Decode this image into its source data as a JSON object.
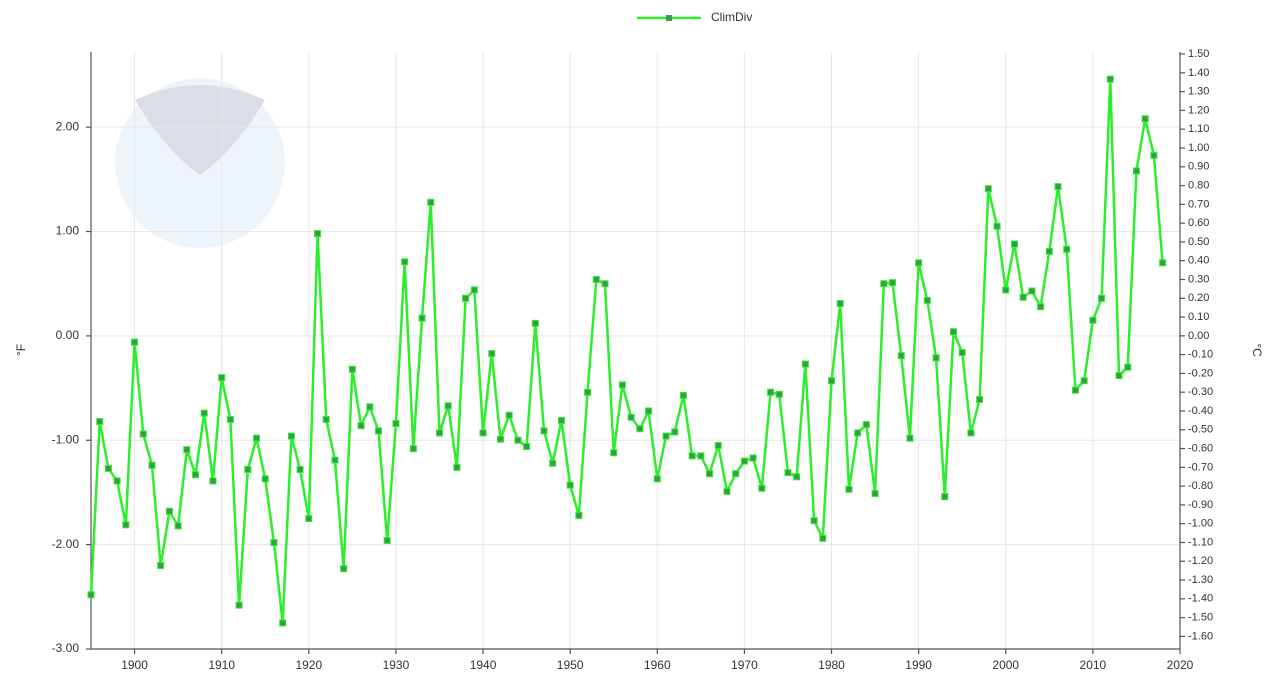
{
  "chart_data": {
    "type": "line",
    "y_label": "°F",
    "y2_label": "°C",
    "x": [
      1895,
      1896,
      1897,
      1898,
      1899,
      1900,
      1901,
      1902,
      1903,
      1904,
      1905,
      1906,
      1907,
      1908,
      1909,
      1910,
      1911,
      1912,
      1913,
      1914,
      1915,
      1916,
      1917,
      1918,
      1919,
      1920,
      1921,
      1922,
      1923,
      1924,
      1925,
      1926,
      1927,
      1928,
      1929,
      1930,
      1931,
      1932,
      1933,
      1934,
      1935,
      1936,
      1937,
      1938,
      1939,
      1940,
      1941,
      1942,
      1943,
      1944,
      1945,
      1946,
      1947,
      1948,
      1949,
      1950,
      1951,
      1952,
      1953,
      1954,
      1955,
      1956,
      1957,
      1958,
      1959,
      1960,
      1961,
      1962,
      1963,
      1964,
      1965,
      1966,
      1967,
      1968,
      1969,
      1970,
      1971,
      1972,
      1973,
      1974,
      1975,
      1976,
      1977,
      1978,
      1979,
      1980,
      1981,
      1982,
      1983,
      1984,
      1985,
      1986,
      1987,
      1988,
      1989,
      1990,
      1991,
      1992,
      1993,
      1994,
      1995,
      1996,
      1997,
      1998,
      1999,
      2000,
      2001,
      2002,
      2003,
      2004,
      2005,
      2006,
      2007,
      2008,
      2009,
      2010,
      2011,
      2012,
      2013,
      2014,
      2015,
      2016,
      2017,
      2018
    ],
    "series": [
      {
        "name": "ClimDiv",
        "color": "#2bef2b",
        "marker_color": "#3a9a4a",
        "values": [
          -2.48,
          -0.82,
          -1.27,
          -1.39,
          -1.81,
          -0.06,
          -0.94,
          -1.24,
          -2.2,
          -1.68,
          -1.82,
          -1.09,
          -1.33,
          -0.74,
          -1.39,
          -0.4,
          -0.8,
          -2.58,
          -1.28,
          -0.98,
          -1.37,
          -1.98,
          -2.75,
          -0.96,
          -1.28,
          -1.75,
          0.98,
          -0.8,
          -1.19,
          -2.23,
          -0.32,
          -0.86,
          -0.68,
          -0.91,
          -1.96,
          -0.84,
          0.71,
          -1.08,
          0.17,
          1.28,
          -0.93,
          -0.67,
          -1.26,
          0.36,
          0.44,
          -0.93,
          -0.17,
          -0.99,
          -0.76,
          -1.0,
          -1.06,
          0.12,
          -0.91,
          -1.22,
          -0.81,
          -1.43,
          -1.72,
          -0.54,
          0.54,
          0.5,
          -1.12,
          -0.47,
          -0.78,
          -0.89,
          -0.72,
          -1.37,
          -0.96,
          -0.92,
          -0.57,
          -1.15,
          -1.15,
          -1.32,
          -1.05,
          -1.49,
          -1.32,
          -1.2,
          -1.17,
          -1.46,
          -0.54,
          -0.56,
          -1.31,
          -1.35,
          -0.27,
          -1.77,
          -1.94,
          -0.43,
          0.31,
          -1.47,
          -0.93,
          -0.85,
          -1.51,
          0.5,
          0.51,
          -0.19,
          -0.98,
          0.7,
          0.34,
          -0.21,
          -1.54,
          0.04,
          -0.16,
          -0.93,
          -0.61,
          1.41,
          1.05,
          0.44,
          0.88,
          0.37,
          0.43,
          0.28,
          0.81,
          1.43,
          0.83,
          -0.52,
          -0.43,
          0.15,
          0.36,
          2.46,
          -0.38,
          -0.3,
          1.58,
          2.08,
          1.73,
          0.7
        ]
      }
    ],
    "xlim": [
      1895,
      2020
    ],
    "xticks": [
      1900,
      1910,
      1920,
      1930,
      1940,
      1950,
      1960,
      1970,
      1980,
      1990,
      2000,
      2010,
      2020
    ],
    "ylim": [
      -3,
      2.72
    ],
    "yticks": [
      {
        "value": -3,
        "label": "-3.00"
      },
      {
        "value": -2,
        "label": "-2.00"
      },
      {
        "value": -1,
        "label": "-1.00"
      },
      {
        "value": 0,
        "label": "0.00"
      },
      {
        "value": 1,
        "label": "1.00"
      },
      {
        "value": 2,
        "label": "2.00"
      }
    ],
    "y2lim": [
      -1.667,
      1.511
    ],
    "y2ticks": [
      {
        "value": -1.6,
        "label": "-1.60"
      },
      {
        "value": -1.5,
        "label": "-1.50"
      },
      {
        "value": -1.4,
        "label": "-1.40"
      },
      {
        "value": -1.3,
        "label": "-1.30"
      },
      {
        "value": -1.2,
        "label": "-1.20"
      },
      {
        "value": -1.1,
        "label": "-1.10"
      },
      {
        "value": -1.0,
        "label": "-1.00"
      },
      {
        "value": -0.9,
        "label": "-0.90"
      },
      {
        "value": -0.8,
        "label": "-0.80"
      },
      {
        "value": -0.7,
        "label": "-0.70"
      },
      {
        "value": -0.6,
        "label": "-0.60"
      },
      {
        "value": -0.5,
        "label": "-0.50"
      },
      {
        "value": -0.4,
        "label": "-0.40"
      },
      {
        "value": -0.3,
        "label": "-0.30"
      },
      {
        "value": -0.2,
        "label": "-0.20"
      },
      {
        "value": -0.1,
        "label": "-0.10"
      },
      {
        "value": 0,
        "label": "0.00"
      },
      {
        "value": 0.1,
        "label": "0.10"
      },
      {
        "value": 0.2,
        "label": "0.20"
      },
      {
        "value": 0.3,
        "label": "0.30"
      },
      {
        "value": 0.4,
        "label": "0.40"
      },
      {
        "value": 0.5,
        "label": "0.50"
      },
      {
        "value": 0.6,
        "label": "0.60"
      },
      {
        "value": 0.7,
        "label": "0.70"
      },
      {
        "value": 0.8,
        "label": "0.80"
      },
      {
        "value": 0.9,
        "label": "0.90"
      },
      {
        "value": 1.0,
        "label": "1.00"
      },
      {
        "value": 1.1,
        "label": "1.10"
      },
      {
        "value": 1.2,
        "label": "1.20"
      },
      {
        "value": 1.3,
        "label": "1.30"
      },
      {
        "value": 1.4,
        "label": "1.40"
      },
      {
        "value": 1.5,
        "label": "1.50"
      }
    ],
    "grid": true,
    "legend": "top"
  }
}
